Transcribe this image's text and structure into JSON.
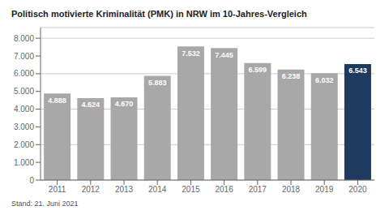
{
  "chart_data": {
    "type": "bar",
    "title": "Politisch motivierte Kriminalität (PMK) in NRW im 10-Jahres-Vergleich",
    "categories": [
      "2011",
      "2012",
      "2013",
      "2014",
      "2015",
      "2016",
      "2017",
      "2018",
      "2019",
      "2020"
    ],
    "values": [
      4888,
      4624,
      4670,
      5883,
      7532,
      7445,
      6599,
      6238,
      6032,
      6543
    ],
    "value_labels": [
      "4.888",
      "4.624",
      "4.670",
      "5.883",
      "7.532",
      "7.445",
      "6.599",
      "6.238",
      "6.032",
      "6.543"
    ],
    "data_labels": true,
    "colors": [
      "#a8a8a8",
      "#a8a8a8",
      "#a8a8a8",
      "#a8a8a8",
      "#a8a8a8",
      "#a8a8a8",
      "#a8a8a8",
      "#a8a8a8",
      "#a8a8a8",
      "#1e3a5f"
    ],
    "ylim": [
      0,
      8600
    ],
    "yticks": [
      0,
      {
        "value": 1000,
        "label": "1.000"
      },
      {
        "value": 2000,
        "label": "2.000"
      },
      {
        "value": 3000,
        "label": "3.000"
      },
      {
        "value": 4000,
        "label": "4.000"
      },
      {
        "value": 5000,
        "label": "5.000"
      },
      {
        "value": 6000,
        "label": "6.000"
      },
      {
        "value": 7000,
        "label": "7.000"
      },
      {
        "value": 8000,
        "label": "8.000"
      }
    ],
    "grid": true,
    "annotations": [
      "Stand: 21. Juni 2021"
    ]
  }
}
